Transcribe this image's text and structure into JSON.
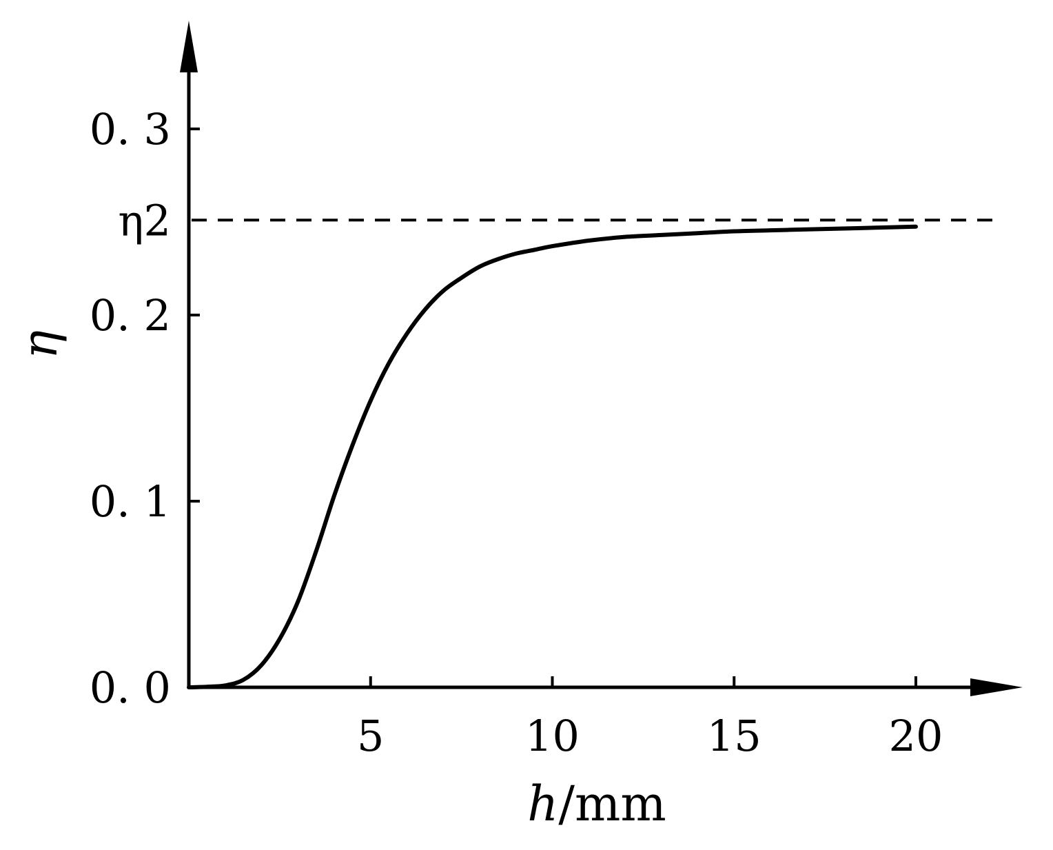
{
  "chart_data": {
    "type": "line",
    "xlabel": {
      "var": "h",
      "unit": "/mm"
    },
    "ylabel": "η",
    "xlim": [
      0,
      22.5
    ],
    "ylim": [
      0,
      0.35
    ],
    "xticks": [
      5,
      10,
      15,
      20
    ],
    "xtick_labels": [
      "5",
      "10",
      "15",
      "20"
    ],
    "yticks": [
      0.0,
      0.1,
      0.2,
      0.3
    ],
    "ytick_labels": [
      "0. 0",
      "0. 1",
      "0. 2",
      "0. 3"
    ],
    "grid": false,
    "reference_line": {
      "label": "η2",
      "y": 0.251,
      "style": "dashed"
    },
    "series": [
      {
        "x": [
          0,
          0.5,
          1,
          1.5,
          2,
          2.5,
          3,
          3.5,
          4,
          4.5,
          5,
          5.5,
          6,
          6.5,
          7,
          7.5,
          8,
          8.5,
          9,
          9.5,
          10,
          11,
          12,
          13,
          14,
          15,
          16,
          17,
          18,
          19,
          20
        ],
        "y": [
          0,
          0.0003,
          0.001,
          0.004,
          0.012,
          0.026,
          0.046,
          0.073,
          0.103,
          0.13,
          0.154,
          0.174,
          0.19,
          0.203,
          0.213,
          0.22,
          0.226,
          0.23,
          0.233,
          0.235,
          0.237,
          0.24,
          0.242,
          0.243,
          0.244,
          0.245,
          0.2455,
          0.246,
          0.2465,
          0.247,
          0.2475
        ]
      }
    ]
  }
}
